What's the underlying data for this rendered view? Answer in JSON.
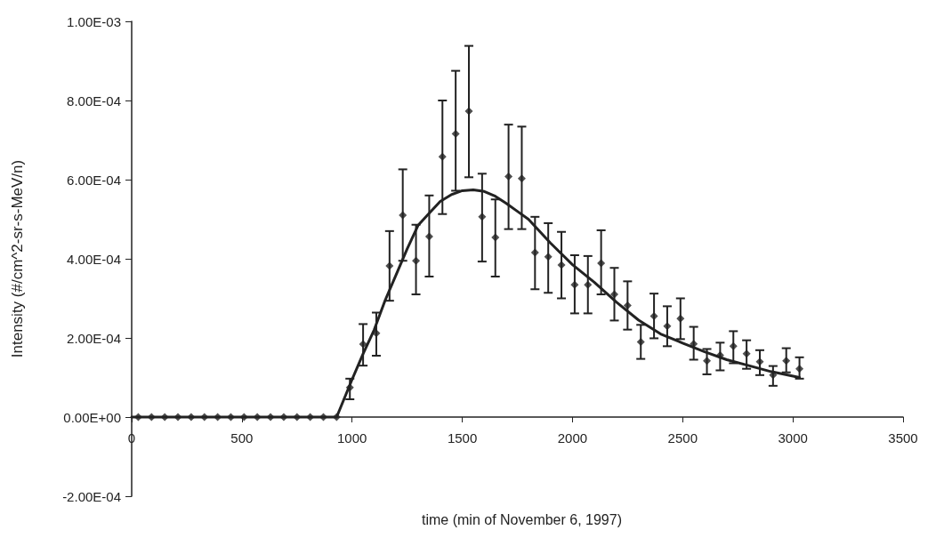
{
  "chart_data": {
    "type": "scatter",
    "xlabel": "time (min of November 6, 1997)",
    "ylabel": "Intensity (#/cm^2-sr-s-MeV/n)",
    "xlim": [
      0,
      3500
    ],
    "xticks": [
      0,
      500,
      1000,
      1500,
      2000,
      2500,
      3000,
      3500
    ],
    "ylim": [
      -0.0002,
      0.001
    ],
    "yticks": [
      {
        "value": -0.0002,
        "label": "-2.00E-04"
      },
      {
        "value": 0,
        "label": "0.00E+00"
      },
      {
        "value": 0.0002,
        "label": "2.00E-04"
      },
      {
        "value": 0.0004,
        "label": "4.00E-04"
      },
      {
        "value": 0.0006,
        "label": "6.00E-04"
      },
      {
        "value": 0.0008,
        "label": "8.00E-04"
      },
      {
        "value": 0.001,
        "label": "1.00E-03"
      }
    ],
    "marker": "diamond",
    "series": [
      {
        "color": "#222222",
        "x": [
          30,
          90,
          150,
          210,
          270,
          330,
          390,
          450,
          510,
          570,
          630,
          690,
          750,
          810,
          870,
          930,
          990,
          1050,
          1110,
          1170,
          1230,
          1290,
          1350,
          1410,
          1470,
          1530,
          1590,
          1650,
          1710,
          1770,
          1830,
          1890,
          1950,
          2010,
          2070,
          2130,
          2190,
          2250,
          2310,
          2370,
          2430,
          2490,
          2550,
          2610,
          2670,
          2730,
          2790,
          2850,
          2910,
          2970,
          3030
        ],
        "values": [
          0,
          0,
          0,
          0,
          0,
          0,
          0,
          0,
          0,
          0,
          0,
          0,
          0,
          0,
          0,
          0,
          7.5e-05,
          0.000184,
          0.000212,
          0.000382,
          0.00051,
          0.000395,
          0.000456,
          0.000658,
          0.000716,
          0.000773,
          0.000506,
          0.000454,
          0.000608,
          0.000603,
          0.000416,
          0.000405,
          0.000384,
          0.000334,
          0.000334,
          0.000389,
          0.00031,
          0.000282,
          0.00019,
          0.000255,
          0.00023,
          0.000249,
          0.000185,
          0.000142,
          0.000156,
          0.000179,
          0.00016,
          0.00014,
          0.000106,
          0.000142,
          0.000122
        ],
        "errors": [
          null,
          null,
          null,
          null,
          null,
          null,
          null,
          null,
          null,
          null,
          null,
          null,
          null,
          null,
          null,
          null,
          [
            4.5e-05,
            9.7e-05
          ],
          [
            0.00013,
            0.000235
          ],
          [
            0.000155,
            0.000264
          ],
          [
            0.000294,
            0.00047
          ],
          [
            0.000395,
            0.000626
          ],
          [
            0.00031,
            0.000486
          ],
          [
            0.000355,
            0.00056
          ],
          [
            0.000513,
            0.0008
          ],
          [
            0.000572,
            0.000875
          ],
          [
            0.000606,
            0.000938
          ],
          [
            0.000393,
            0.000615
          ],
          [
            0.000355,
            0.00055
          ],
          [
            0.000475,
            0.000739
          ],
          [
            0.000475,
            0.000734
          ],
          [
            0.000323,
            0.000506
          ],
          [
            0.000314,
            0.00049
          ],
          [
            0.0003,
            0.000468
          ],
          [
            0.000262,
            0.000409
          ],
          [
            0.000262,
            0.000407
          ],
          [
            0.00031,
            0.000472
          ],
          [
            0.000244,
            0.000377
          ],
          [
            0.000221,
            0.000343
          ],
          [
            0.000147,
            0.000233
          ],
          [
            0.000199,
            0.000312
          ],
          [
            0.000179,
            0.00028
          ],
          [
            0.000197,
            0.0003
          ],
          [
            0.000145,
            0.000228
          ],
          [
            0.000108,
            0.000172
          ],
          [
            0.000118,
            0.000188
          ],
          [
            0.000136,
            0.000217
          ],
          [
            0.000122,
            0.000194
          ],
          [
            0.000106,
            0.000169
          ],
          [
            7.9e-05,
            0.000129
          ],
          [
            0.000113,
            0.000174
          ],
          [
            9.7e-05,
            0.000151
          ]
        ]
      },
      {
        "type": "line",
        "color": "#222222",
        "marker": "none",
        "line_style": "solid",
        "x": [
          0,
          880,
          930,
          1000,
          1050,
          1100,
          1150,
          1200,
          1250,
          1300,
          1350,
          1400,
          1450,
          1500,
          1550,
          1600,
          1650,
          1700,
          1750,
          1800,
          1900,
          2000,
          2100,
          2200,
          2300,
          2400,
          2500,
          2600,
          2700,
          2800,
          2900,
          3030
        ],
        "values": [
          0,
          0,
          0,
          9.5e-05,
          0.00016,
          0.00022,
          0.000295,
          0.00036,
          0.000425,
          0.000485,
          0.000515,
          0.000545,
          0.000562,
          0.000572,
          0.000574,
          0.00057,
          0.000558,
          0.00054,
          0.00052,
          0.0005,
          0.00044,
          0.000385,
          0.00034,
          0.00029,
          0.000245,
          0.00021,
          0.000187,
          0.000165,
          0.000145,
          0.00013,
          0.000115,
          0.0001
        ]
      }
    ]
  }
}
